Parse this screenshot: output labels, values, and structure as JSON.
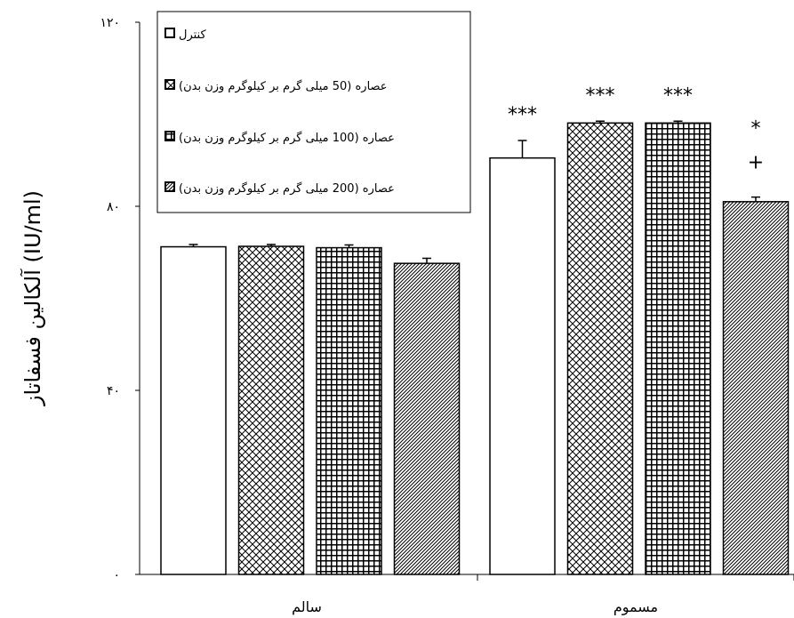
{
  "chart_data": {
    "type": "bar",
    "ylabel": "آلکالین فسفاتاز (IU/ml)",
    "ylim": [
      0,
      120
    ],
    "yticks": [
      {
        "value": 0,
        "label": "۰"
      },
      {
        "value": 40,
        "label": "۴۰"
      },
      {
        "value": 80,
        "label": "۸۰"
      },
      {
        "value": 120,
        "label": "۱۲۰"
      }
    ],
    "categories": [
      "سالم",
      "مسموم"
    ],
    "series": [
      {
        "name": "کنترل",
        "pattern": "solid",
        "values": [
          71.2,
          90.5
        ],
        "errors": [
          0.5,
          3.8
        ],
        "annotations": [
          "",
          "***"
        ]
      },
      {
        "name": "عصاره (50 میلی گرم بر کیلوگرم وزن بدن)",
        "pattern": "crosshatch",
        "values": [
          71.3,
          98.1
        ],
        "errors": [
          0.4,
          0.4
        ],
        "annotations": [
          "",
          "***"
        ]
      },
      {
        "name": "عصاره (100 میلی گرم بر کیلوگرم وزن بدن)",
        "pattern": "grid",
        "values": [
          71.0,
          98.1
        ],
        "errors": [
          0.6,
          0.4
        ],
        "annotations": [
          "",
          "***"
        ]
      },
      {
        "name": "عصاره (200 میلی گرم بر کیلوگرم وزن بدن)",
        "pattern": "diagonal",
        "values": [
          67.6,
          81.0
        ],
        "errors": [
          1.1,
          1.0
        ],
        "annotations": [
          "",
          "* +"
        ]
      }
    ],
    "legend_position": "top-left",
    "grid": false
  }
}
